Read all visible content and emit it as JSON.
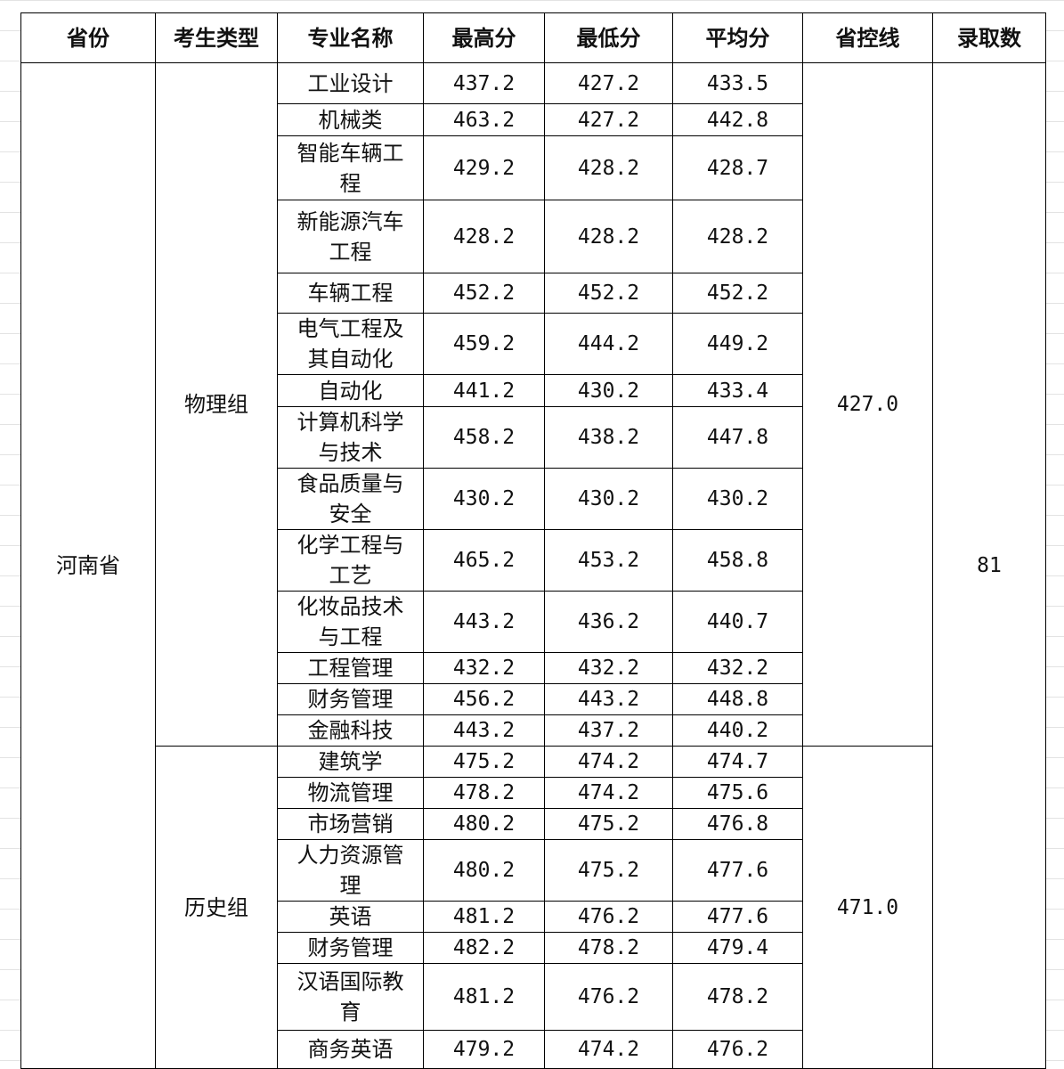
{
  "headers": [
    "省份",
    "考生类型",
    "专业名称",
    "最高分",
    "最低分",
    "平均分",
    "省控线",
    "录取数"
  ],
  "province": "河南省",
  "admitted": "81",
  "groups": [
    {
      "type": "物理组",
      "control_line": "427.0",
      "rows": [
        {
          "major": "工业设计",
          "max": "437.2",
          "min": "427.2",
          "avg": "433.5"
        },
        {
          "major": "机械类",
          "max": "463.2",
          "min": "427.2",
          "avg": "442.8"
        },
        {
          "major": "智能车辆工程",
          "max": "429.2",
          "min": "428.2",
          "avg": "428.7"
        },
        {
          "major": "新能源汽车工程",
          "max": "428.2",
          "min": "428.2",
          "avg": "428.2"
        },
        {
          "major": "车辆工程",
          "max": "452.2",
          "min": "452.2",
          "avg": "452.2"
        },
        {
          "major": "电气工程及其自动化",
          "max": "459.2",
          "min": "444.2",
          "avg": "449.2"
        },
        {
          "major": "自动化",
          "max": "441.2",
          "min": "430.2",
          "avg": "433.4"
        },
        {
          "major": "计算机科学与技术",
          "max": "458.2",
          "min": "438.2",
          "avg": "447.8"
        },
        {
          "major": "食品质量与安全",
          "max": "430.2",
          "min": "430.2",
          "avg": "430.2"
        },
        {
          "major": "化学工程与工艺",
          "max": "465.2",
          "min": "453.2",
          "avg": "458.8"
        },
        {
          "major": "化妆品技术与工程",
          "max": "443.2",
          "min": "436.2",
          "avg": "440.7"
        },
        {
          "major": "工程管理",
          "max": "432.2",
          "min": "432.2",
          "avg": "432.2"
        },
        {
          "major": "财务管理",
          "max": "456.2",
          "min": "443.2",
          "avg": "448.8"
        },
        {
          "major": "金融科技",
          "max": "443.2",
          "min": "437.2",
          "avg": "440.2"
        }
      ]
    },
    {
      "type": "历史组",
      "control_line": "471.0",
      "rows": [
        {
          "major": "建筑学",
          "max": "475.2",
          "min": "474.2",
          "avg": "474.7"
        },
        {
          "major": "物流管理",
          "max": "478.2",
          "min": "474.2",
          "avg": "475.6"
        },
        {
          "major": "市场营销",
          "max": "480.2",
          "min": "475.2",
          "avg": "476.8"
        },
        {
          "major": "人力资源管理",
          "max": "480.2",
          "min": "475.2",
          "avg": "477.6"
        },
        {
          "major": "英语",
          "max": "481.2",
          "min": "476.2",
          "avg": "477.6"
        },
        {
          "major": "财务管理",
          "max": "482.2",
          "min": "478.2",
          "avg": "479.4"
        },
        {
          "major": "汉语国际教育",
          "max": "481.2",
          "min": "476.2",
          "avg": "478.2"
        },
        {
          "major": "商务英语",
          "max": "479.2",
          "min": "474.2",
          "avg": "476.2"
        }
      ]
    }
  ]
}
